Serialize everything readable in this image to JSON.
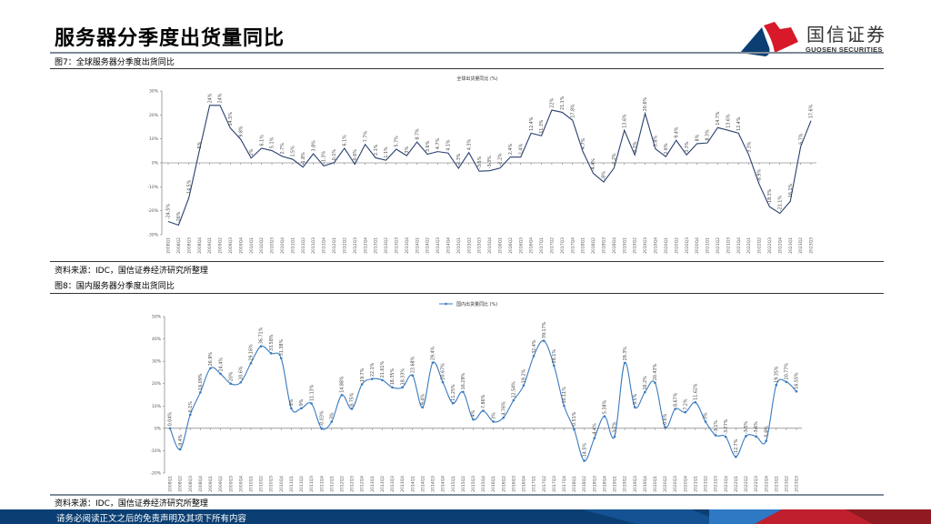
{
  "header": {
    "title": "服务器分季度出货量同比",
    "logo_cn": "国信证券",
    "logo_en": "GUOSEN SECURITIES"
  },
  "figure7": {
    "caption": "图7：全球服务器分季度出货同比",
    "source": "资料来源：IDC，国信证券经济研究所整理"
  },
  "figure8": {
    "caption": "图8：国内服务器分季度出货同比",
    "source": "资料来源：IDC，国信证券经济研究所整理"
  },
  "footer": {
    "disclaimer": "请务必阅读正文之后的免责声明及其项下所有内容"
  },
  "colors": {
    "brand_blue": "#0b3f73",
    "brand_red": "#d7192a",
    "global_line": "#2a3f6e",
    "domestic_line": "#3a7bbf"
  },
  "chart_data": [
    {
      "type": "line",
      "title": "全球出货量同比 (%)",
      "ylim": [
        -30,
        30
      ],
      "yticks": [
        "30%",
        "20%",
        "10%",
        "0%",
        "-10%",
        "-20%",
        "-30%"
      ],
      "grid": false,
      "categories": [
        "2008Q1",
        "2008Q2",
        "2008Q3",
        "2008Q4",
        "2009Q1",
        "2009Q2",
        "2009Q3",
        "2009Q4",
        "2010Q1",
        "2010Q2",
        "2010Q3",
        "2010Q4",
        "2011Q1",
        "2011Q2",
        "2011Q3",
        "2011Q4",
        "2012Q1",
        "2012Q2",
        "2012Q3",
        "2012Q4",
        "2013Q1",
        "2013Q2",
        "2013Q3",
        "2013Q4",
        "2014Q1",
        "2014Q2",
        "2014Q3",
        "2014Q4",
        "2015Q1",
        "2015Q2",
        "2015Q3",
        "2015Q4",
        "2016Q1",
        "2016Q2",
        "2016Q3",
        "2016Q4",
        "2017Q1",
        "2017Q2",
        "2017Q3",
        "2017Q4",
        "2018Q1",
        "2018Q2",
        "2018Q3",
        "2018Q4",
        "2019Q1",
        "2019Q2",
        "2019Q3",
        "2019Q4",
        "2020Q1",
        "2020Q2",
        "2020Q3",
        "2020Q4",
        "2021Q1",
        "2021Q2",
        "2021Q3",
        "2021Q4",
        "2022Q1",
        "2022Q2",
        "2022Q3",
        "2022Q4",
        "2023Q1",
        "2023Q2",
        "2023Q3"
      ],
      "values": [
        -24.5,
        -26,
        -14.5,
        5,
        24,
        24,
        14.5,
        9.8,
        2,
        6.1,
        5.1,
        2.7,
        1.5,
        -1.8,
        3.8,
        -1.3,
        0.1,
        6.1,
        -0.6,
        7.7,
        2.1,
        1.1,
        5.7,
        3,
        8.7,
        3.6,
        4.7,
        4.1,
        -2.3,
        4.3,
        -3.5,
        -3.3,
        -2.2,
        2.4,
        2.4,
        12.4,
        11.3,
        22,
        21.1,
        17.8,
        4.7,
        -4.4,
        -8,
        -2.2,
        13.6,
        3.3,
        20.6,
        5.8,
        2.6,
        9.4,
        3.3,
        8,
        8.3,
        14.7,
        13.6,
        12.4,
        3.3,
        -8.9,
        -18.3,
        -21.1,
        -16.1,
        6.7,
        17.6
      ]
    },
    {
      "type": "line",
      "legend": "国内出货量同比 (%)",
      "legend_position": "top",
      "ylim": [
        -20,
        50
      ],
      "yticks": [
        "50%",
        "40%",
        "30%",
        "20%",
        "10%",
        "0%",
        "-10%",
        "-20%"
      ],
      "grid": false,
      "smooth": true,
      "markers": true,
      "categories": [
        "2008Q1",
        "2008Q2",
        "2008Q3",
        "2008Q4",
        "2009Q1",
        "2009Q2",
        "2009Q3",
        "2009Q4",
        "2010Q1",
        "2010Q2",
        "2010Q3",
        "2010Q4",
        "2011Q1",
        "2011Q2",
        "2011Q3",
        "2011Q4",
        "2012Q1",
        "2012Q2",
        "2012Q3",
        "2012Q4",
        "2013Q1",
        "2013Q2",
        "2013Q3",
        "2013Q4",
        "2014Q1",
        "2014Q2",
        "2014Q3",
        "2014Q4",
        "2015Q1",
        "2015Q2",
        "2015Q3",
        "2015Q4",
        "2016Q1",
        "2016Q2",
        "2016Q3",
        "2016Q4",
        "2017Q1",
        "2017Q2",
        "2017Q3",
        "2017Q4",
        "2018Q1",
        "2018Q2",
        "2018Q3",
        "2018Q4",
        "2019Q1",
        "2019Q2",
        "2019Q3",
        "2019Q4",
        "2020Q1",
        "2020Q2",
        "2020Q3",
        "2020Q4",
        "2021Q1",
        "2021Q2",
        "2021Q3",
        "2021Q4",
        "2022Q1",
        "2022Q2",
        "2022Q3",
        "2022Q4",
        "2023Q1",
        "2023Q2",
        "2023Q3"
      ],
      "values": [
        0.04,
        -9.4,
        6.1,
        16.09,
        26.9,
        24.4,
        20,
        20.6,
        29.16,
        36.71,
        33.58,
        31.38,
        9,
        9,
        11.13,
        -0.03,
        3,
        14.88,
        8.75,
        19.7,
        22.1,
        21.61,
        18.35,
        18.33,
        23.68,
        9.4,
        29.4,
        20.67,
        11.25,
        16.29,
        4,
        7.86,
        3,
        4.76,
        12.54,
        19.2,
        32.4,
        39.17,
        28.1,
        10.11,
        -0.51,
        -14.5,
        -4.4,
        5.38,
        -3.7,
        29.3,
        9.5,
        16.2,
        20.43,
        0.6,
        8.67,
        7.2,
        11.62,
        3,
        -3.1,
        -3.77,
        -12.7,
        -3.5,
        -3.6,
        -5.6,
        19.35,
        20.77,
        16.55
      ]
    }
  ]
}
